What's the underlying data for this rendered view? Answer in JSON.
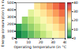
{
  "chart_data": {
    "type": "heatmap",
    "x_label": "Operating temperature (in °C)",
    "y_label": "Energy consumption (in kWh)",
    "x_edges": [
      0,
      5,
      10,
      15,
      20,
      25,
      30,
      35,
      40
    ],
    "y_edges": [
      0,
      100,
      200,
      300,
      400,
      500
    ],
    "cells": [
      [
        2,
        5,
        8,
        11,
        14,
        17,
        20,
        23
      ],
      [
        5,
        8,
        11,
        14,
        17,
        20,
        23,
        26
      ],
      [
        null,
        11,
        14,
        17,
        20,
        23,
        26,
        29
      ],
      [
        null,
        null,
        17,
        20,
        23,
        26,
        29,
        32
      ],
      [
        null,
        null,
        null,
        23,
        26,
        29,
        32,
        35
      ]
    ],
    "xlim": [
      0,
      40
    ],
    "xticks": [
      0,
      10,
      20,
      30,
      40
    ],
    "ylim": [
      0,
      500
    ],
    "yticks": [
      0,
      100,
      200,
      300,
      400,
      500
    ],
    "colorbar_range": [
      0,
      40
    ],
    "colorbar_ticks": [
      0,
      10,
      20,
      30,
      40
    ]
  }
}
